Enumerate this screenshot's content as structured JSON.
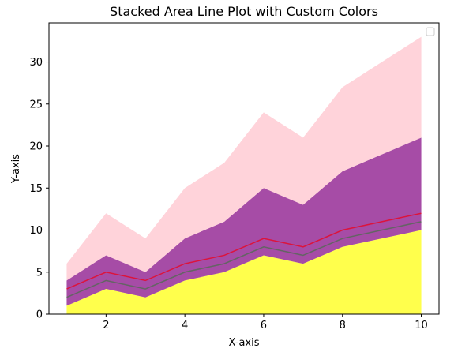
{
  "chart_data": {
    "type": "area",
    "stacked": true,
    "title": "Stacked Area Line Plot with Custom Colors",
    "xlabel": "X-axis",
    "ylabel": "Y-axis",
    "x": [
      1,
      2,
      3,
      4,
      5,
      6,
      7,
      8,
      9,
      10
    ],
    "xlim": [
      0.55,
      10.45
    ],
    "ylim": [
      0,
      34.65
    ],
    "xticks": [
      2,
      4,
      6,
      8,
      10
    ],
    "yticks": [
      0,
      5,
      10,
      15,
      20,
      25,
      30
    ],
    "grid": false,
    "legend": {
      "placement": "top-right",
      "entries": []
    },
    "layers": [
      {
        "kind": "fill",
        "from": 0,
        "to": [
          1,
          3,
          2,
          4,
          5,
          7,
          6,
          8,
          9,
          10
        ],
        "color": "#ffff00",
        "alpha": 0.7
      },
      {
        "kind": "fill",
        "from": [
          1,
          3,
          2,
          4,
          5,
          7,
          6,
          8,
          9,
          10
        ],
        "to": [
          2,
          4,
          3,
          5,
          6,
          8,
          7,
          9,
          10,
          11
        ],
        "color": "#800080",
        "alpha": 0.7
      },
      {
        "kind": "fill",
        "from": [
          2,
          4,
          3,
          5,
          6,
          8,
          7,
          9,
          10,
          11
        ],
        "to": [
          3,
          5,
          4,
          6,
          7,
          9,
          8,
          10,
          11,
          12
        ],
        "color": "#800080",
        "alpha": 0.7
      },
      {
        "kind": "fill",
        "from": [
          3,
          5,
          4,
          6,
          7,
          9,
          8,
          10,
          11,
          12
        ],
        "to": [
          4,
          7,
          5,
          9,
          11,
          15,
          13,
          17,
          19,
          21
        ],
        "color": "#800080",
        "alpha": 0.7
      },
      {
        "kind": "fill",
        "from": [
          4,
          7,
          5,
          9,
          11,
          15,
          13,
          17,
          19,
          21
        ],
        "to": [
          6,
          12,
          9,
          15,
          18,
          24,
          21,
          27,
          30,
          33
        ],
        "color": "#ffc0cb",
        "alpha": 0.7
      },
      {
        "kind": "line",
        "values": [
          2,
          4,
          3,
          5,
          6,
          8,
          7,
          9,
          10,
          11
        ],
        "color": "#646464"
      },
      {
        "kind": "line",
        "values": [
          3,
          5,
          4,
          6,
          7,
          9,
          8,
          10,
          11,
          12
        ],
        "color": "#dc143c"
      }
    ]
  }
}
